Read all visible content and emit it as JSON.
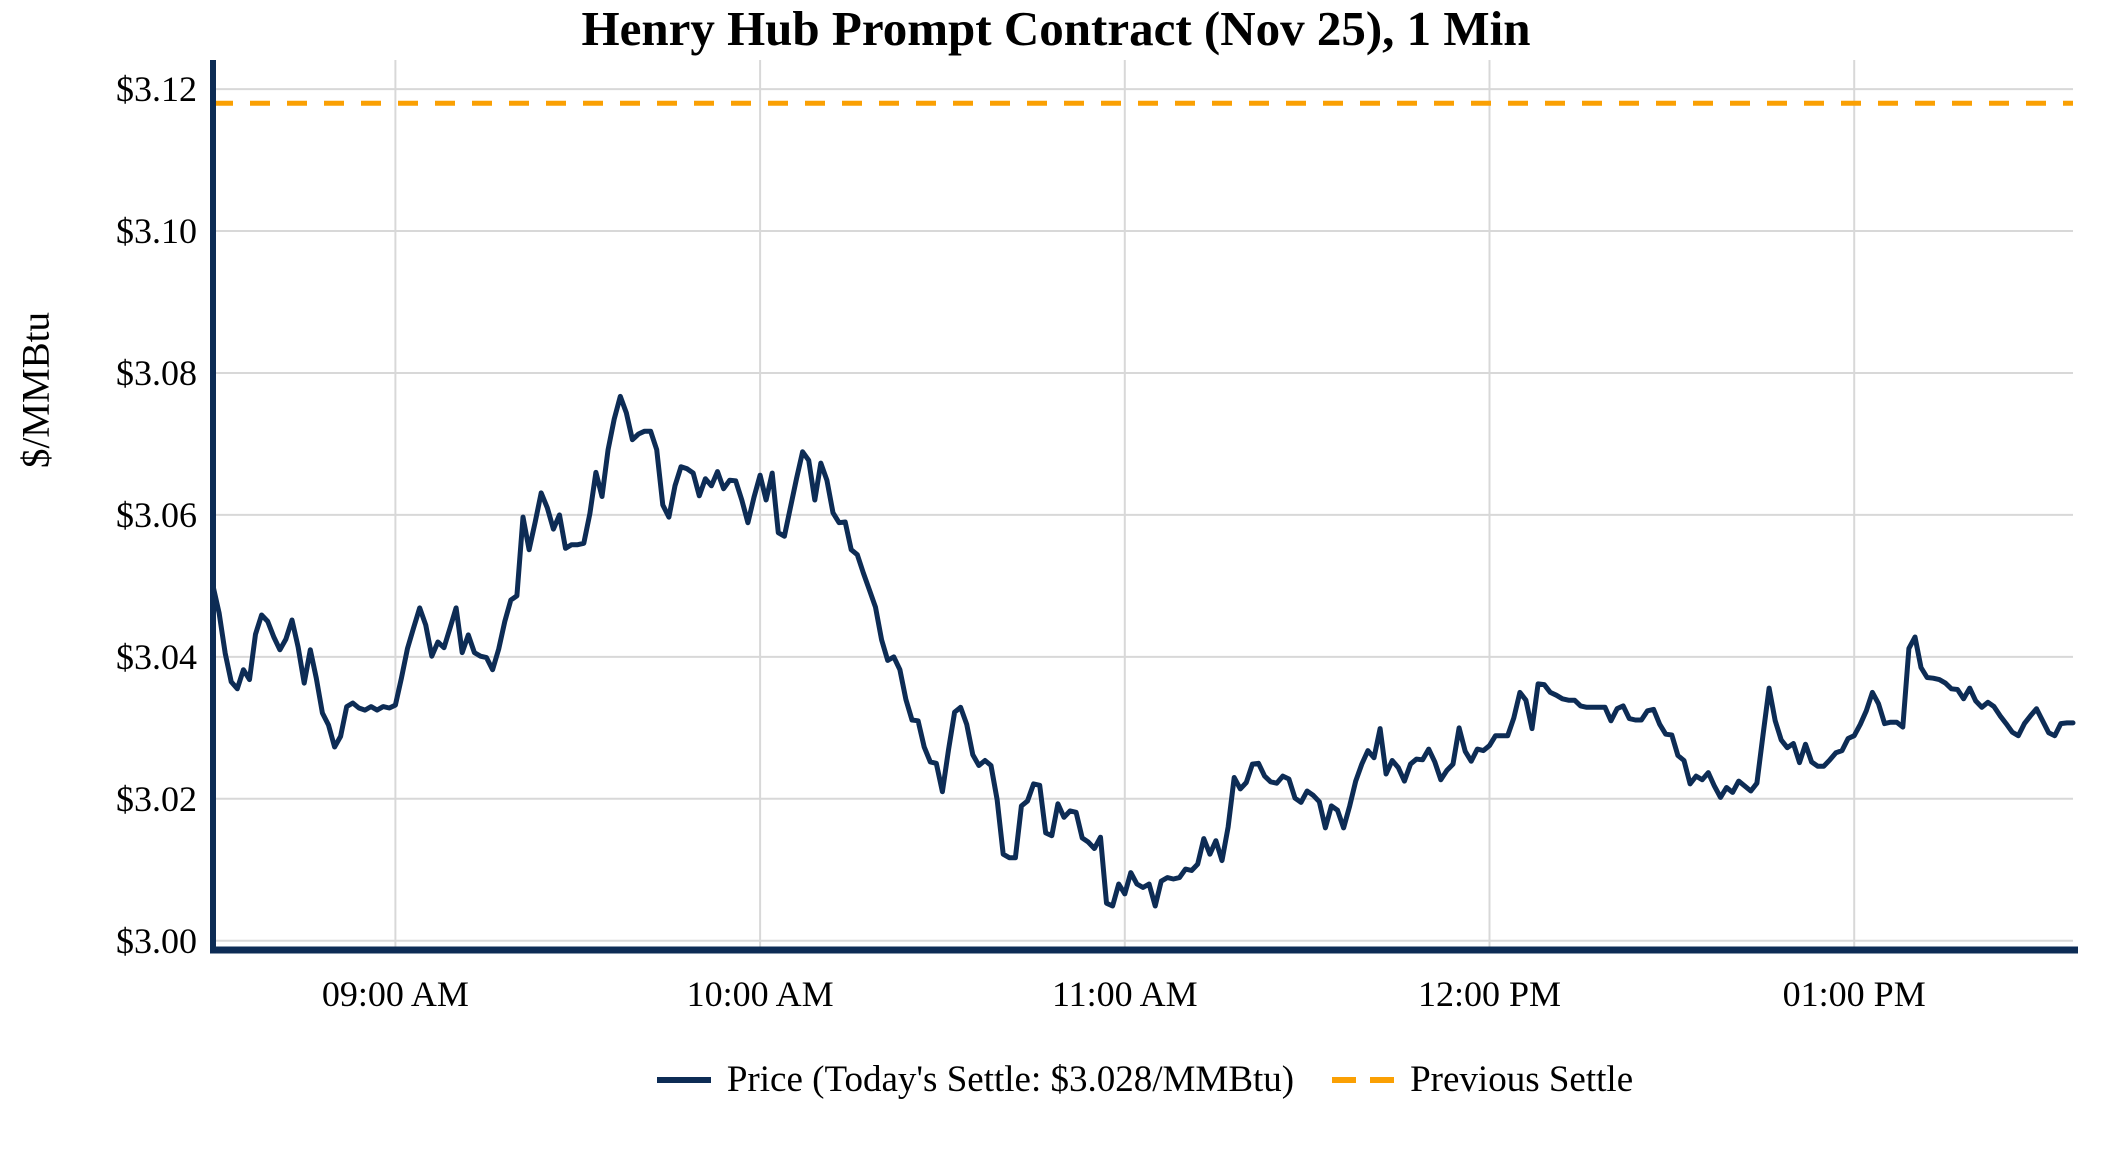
{
  "chart_data": {
    "type": "line",
    "title": "Henry Hub Prompt Contract (Nov 25), 1 Min",
    "ylabel": "$/MMBtu",
    "xlabel": "",
    "grid": "on",
    "legend_position": "bottom-center",
    "colors": {
      "grid": "#d8d8d8",
      "axis": "#0d2c55",
      "text": "#000000",
      "background": "#ffffff"
    },
    "ylim": [
      2.9987,
      3.1241
    ],
    "x_start_time": "08:30 AM",
    "x_end_time": "01:36 PM",
    "x_interval_minutes": 1,
    "y_ticks": [
      {
        "label": "$3.00",
        "value": 3.0
      },
      {
        "label": "$3.02",
        "value": 3.02
      },
      {
        "label": "$3.04",
        "value": 3.04
      },
      {
        "label": "$3.06",
        "value": 3.06
      },
      {
        "label": "$3.08",
        "value": 3.08
      },
      {
        "label": "$3.10",
        "value": 3.1
      },
      {
        "label": "$3.12",
        "value": 3.12
      }
    ],
    "x_ticks": [
      {
        "label": "09:00 AM",
        "index": 30
      },
      {
        "label": "10:00 AM",
        "index": 90
      },
      {
        "label": "11:00 AM",
        "index": 150
      },
      {
        "label": "12:00 PM",
        "index": 210
      },
      {
        "label": "01:00 PM",
        "index": 270
      }
    ],
    "series": [
      {
        "name": "Price (Today's Settle: $3.028/MMBtu)",
        "today_settle_label": "$3.028/MMBtu",
        "color": "#0d2c55",
        "values": [
          3.05,
          3.0462,
          3.0405,
          3.0365,
          3.0355,
          3.0382,
          3.0368,
          3.0432,
          3.0459,
          3.045,
          3.0428,
          3.041,
          3.0425,
          3.0452,
          3.0414,
          3.0363,
          3.041,
          3.037,
          3.0321,
          3.0304,
          3.0273,
          3.0288,
          3.033,
          3.0335,
          3.0328,
          3.0325,
          3.033,
          3.0325,
          3.033,
          3.0328,
          3.0332,
          3.037,
          3.0412,
          3.0441,
          3.0469,
          3.0445,
          3.0401,
          3.0421,
          3.0413,
          3.0441,
          3.0469,
          3.0406,
          3.0431,
          3.0406,
          3.0401,
          3.0399,
          3.0382,
          3.0411,
          3.045,
          3.048,
          3.0486,
          3.0597,
          3.0551,
          3.059,
          3.0631,
          3.061,
          3.058,
          3.06,
          3.0553,
          3.0558,
          3.0558,
          3.056,
          3.0602,
          3.066,
          3.0626,
          3.0692,
          3.0735,
          3.0767,
          3.0744,
          3.0706,
          3.0714,
          3.0718,
          3.0718,
          3.0692,
          3.0614,
          3.0597,
          3.0641,
          3.0668,
          3.0665,
          3.0659,
          3.0627,
          3.0651,
          3.0641,
          3.0661,
          3.0637,
          3.0649,
          3.0648,
          3.0621,
          3.0589,
          3.0625,
          3.0656,
          3.0621,
          3.0659,
          3.0575,
          3.057,
          3.0611,
          3.0651,
          3.0689,
          3.0677,
          3.0621,
          3.0673,
          3.0649,
          3.0603,
          3.0589,
          3.059,
          3.0551,
          3.0544,
          3.0518,
          3.0494,
          3.047,
          3.0424,
          3.0395,
          3.04,
          3.0382,
          3.034,
          3.0311,
          3.031,
          3.0273,
          3.0252,
          3.025,
          3.021,
          3.0269,
          3.0322,
          3.0329,
          3.0305,
          3.0262,
          3.0247,
          3.0254,
          3.0247,
          3.0199,
          3.0122,
          3.0117,
          3.0117,
          3.019,
          3.0197,
          3.0221,
          3.0219,
          3.0152,
          3.0148,
          3.0193,
          3.0174,
          3.0183,
          3.0181,
          3.0145,
          3.0139,
          3.013,
          3.0146,
          3.0053,
          3.0049,
          3.008,
          3.0066,
          3.0096,
          3.008,
          3.0075,
          3.008,
          3.0049,
          3.0084,
          3.0089,
          3.0087,
          3.0089,
          3.0101,
          3.0099,
          3.0108,
          3.0144,
          3.0122,
          3.0141,
          3.0113,
          3.016,
          3.023,
          3.0214,
          3.0223,
          3.0249,
          3.025,
          3.0232,
          3.0224,
          3.0222,
          3.0232,
          3.0228,
          3.0201,
          3.0195,
          3.0211,
          3.0205,
          3.0196,
          3.0159,
          3.019,
          3.0184,
          3.0159,
          3.019,
          3.0225,
          3.0249,
          3.0268,
          3.0258,
          3.0299,
          3.0235,
          3.0254,
          3.0244,
          3.0225,
          3.0249,
          3.0256,
          3.0255,
          3.027,
          3.0252,
          3.0227,
          3.024,
          3.0249,
          3.03,
          3.0267,
          3.0253,
          3.027,
          3.0268,
          3.0275,
          3.0289,
          3.0289,
          3.0289,
          3.0314,
          3.035,
          3.0339,
          3.0299,
          3.0362,
          3.0361,
          3.035,
          3.0346,
          3.0341,
          3.0339,
          3.0339,
          3.0331,
          3.0329,
          3.0329,
          3.0329,
          3.0329,
          3.031,
          3.0327,
          3.0331,
          3.0313,
          3.0311,
          3.0311,
          3.0324,
          3.0326,
          3.0305,
          3.0291,
          3.029,
          3.0261,
          3.0254,
          3.0221,
          3.0232,
          3.0227,
          3.0237,
          3.0218,
          3.0202,
          3.0216,
          3.0209,
          3.0225,
          3.0218,
          3.0211,
          3.0222,
          3.029,
          3.0356,
          3.031,
          3.0283,
          3.0272,
          3.0278,
          3.0251,
          3.0277,
          3.0252,
          3.0246,
          3.0246,
          3.0255,
          3.0265,
          3.0268,
          3.0285,
          3.0289,
          3.0305,
          3.0324,
          3.035,
          3.0334,
          3.0306,
          3.0308,
          3.0308,
          3.0301,
          3.0412,
          3.0428,
          3.0385,
          3.0371,
          3.037,
          3.0368,
          3.0363,
          3.0355,
          3.0354,
          3.0341,
          3.0356,
          3.0338,
          3.0329,
          3.0336,
          3.033,
          3.0317,
          3.0306,
          3.0294,
          3.0289,
          3.0306,
          3.0317,
          3.0327,
          3.031,
          3.0293,
          3.0289,
          3.0306,
          3.0307,
          3.0307
        ]
      }
    ],
    "previous_settle": {
      "name": "Previous Settle",
      "value": 3.118,
      "color": "#faa003",
      "style": "dashed"
    }
  }
}
